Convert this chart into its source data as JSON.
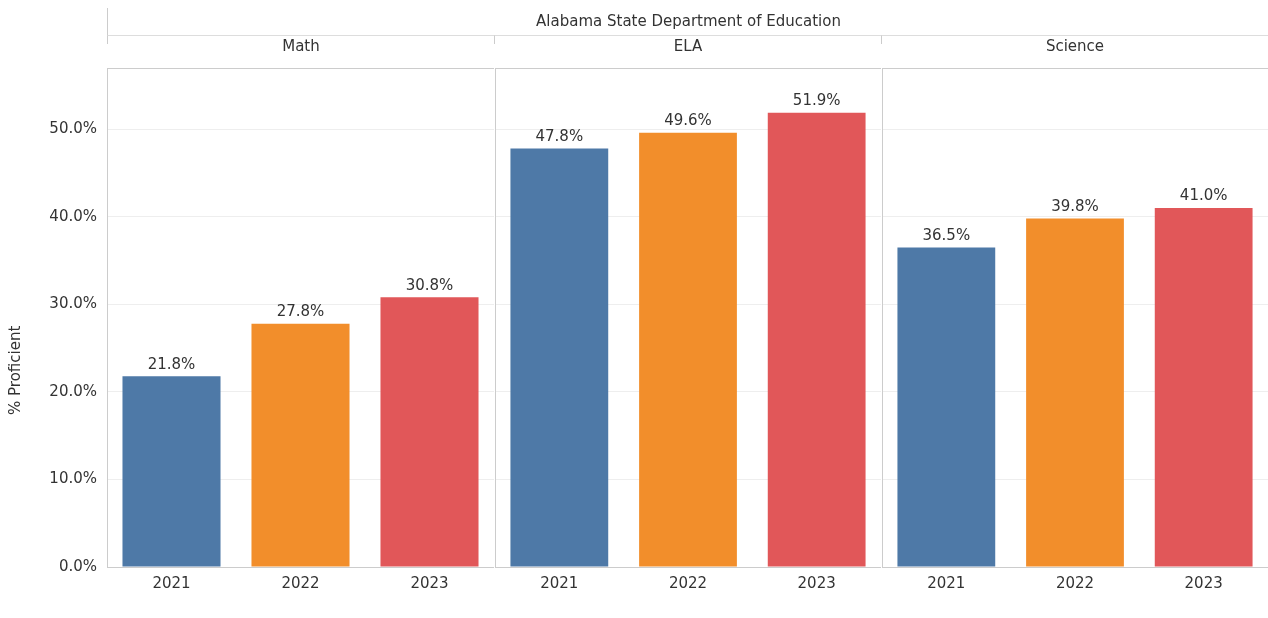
{
  "chart_data": [
    {
      "type": "other",
      "title": "Alabama State Department of Education"
    },
    {
      "type": "bar",
      "title": "Math",
      "ylabel": "% Proficient",
      "categories": [
        "2021",
        "2022",
        "2023"
      ],
      "values": [
        21.8,
        27.8,
        30.8
      ],
      "colors": [
        "#4e79a7",
        "#f28e2b",
        "#e15759"
      ],
      "value_labels": [
        "21.8%",
        "27.8%",
        "30.8%"
      ],
      "ylim": [
        0,
        57
      ],
      "yticks": [
        {
          "value": 0,
          "label": "0.0%"
        },
        {
          "value": 10,
          "label": "10.0%"
        },
        {
          "value": 20,
          "label": "20.0%"
        },
        {
          "value": 30,
          "label": "30.0%"
        },
        {
          "value": 40,
          "label": "40.0%"
        },
        {
          "value": 50,
          "label": "50.0%"
        }
      ],
      "grid": "y"
    },
    {
      "type": "bar",
      "title": "ELA",
      "categories": [
        "2021",
        "2022",
        "2023"
      ],
      "values": [
        47.8,
        49.6,
        51.9
      ],
      "colors": [
        "#4e79a7",
        "#f28e2b",
        "#e15759"
      ],
      "value_labels": [
        "47.8%",
        "49.6%",
        "51.9%"
      ],
      "ylim": [
        0,
        57
      ],
      "yticks": [
        0,
        10,
        20,
        30,
        40,
        50
      ],
      "grid": "y",
      "tick_labels": "x"
    },
    {
      "type": "bar",
      "title": "Science",
      "categories": [
        "2021",
        "2022",
        "2023"
      ],
      "values": [
        36.5,
        39.8,
        41.0
      ],
      "colors": [
        "#4e79a7",
        "#f28e2b",
        "#e15759"
      ],
      "value_labels": [
        "36.5%",
        "39.8%",
        "41.0%"
      ],
      "ylim": [
        0,
        57
      ],
      "yticks": [
        0,
        10,
        20,
        30,
        40,
        50
      ],
      "grid": "y",
      "tick_labels": "x"
    }
  ]
}
